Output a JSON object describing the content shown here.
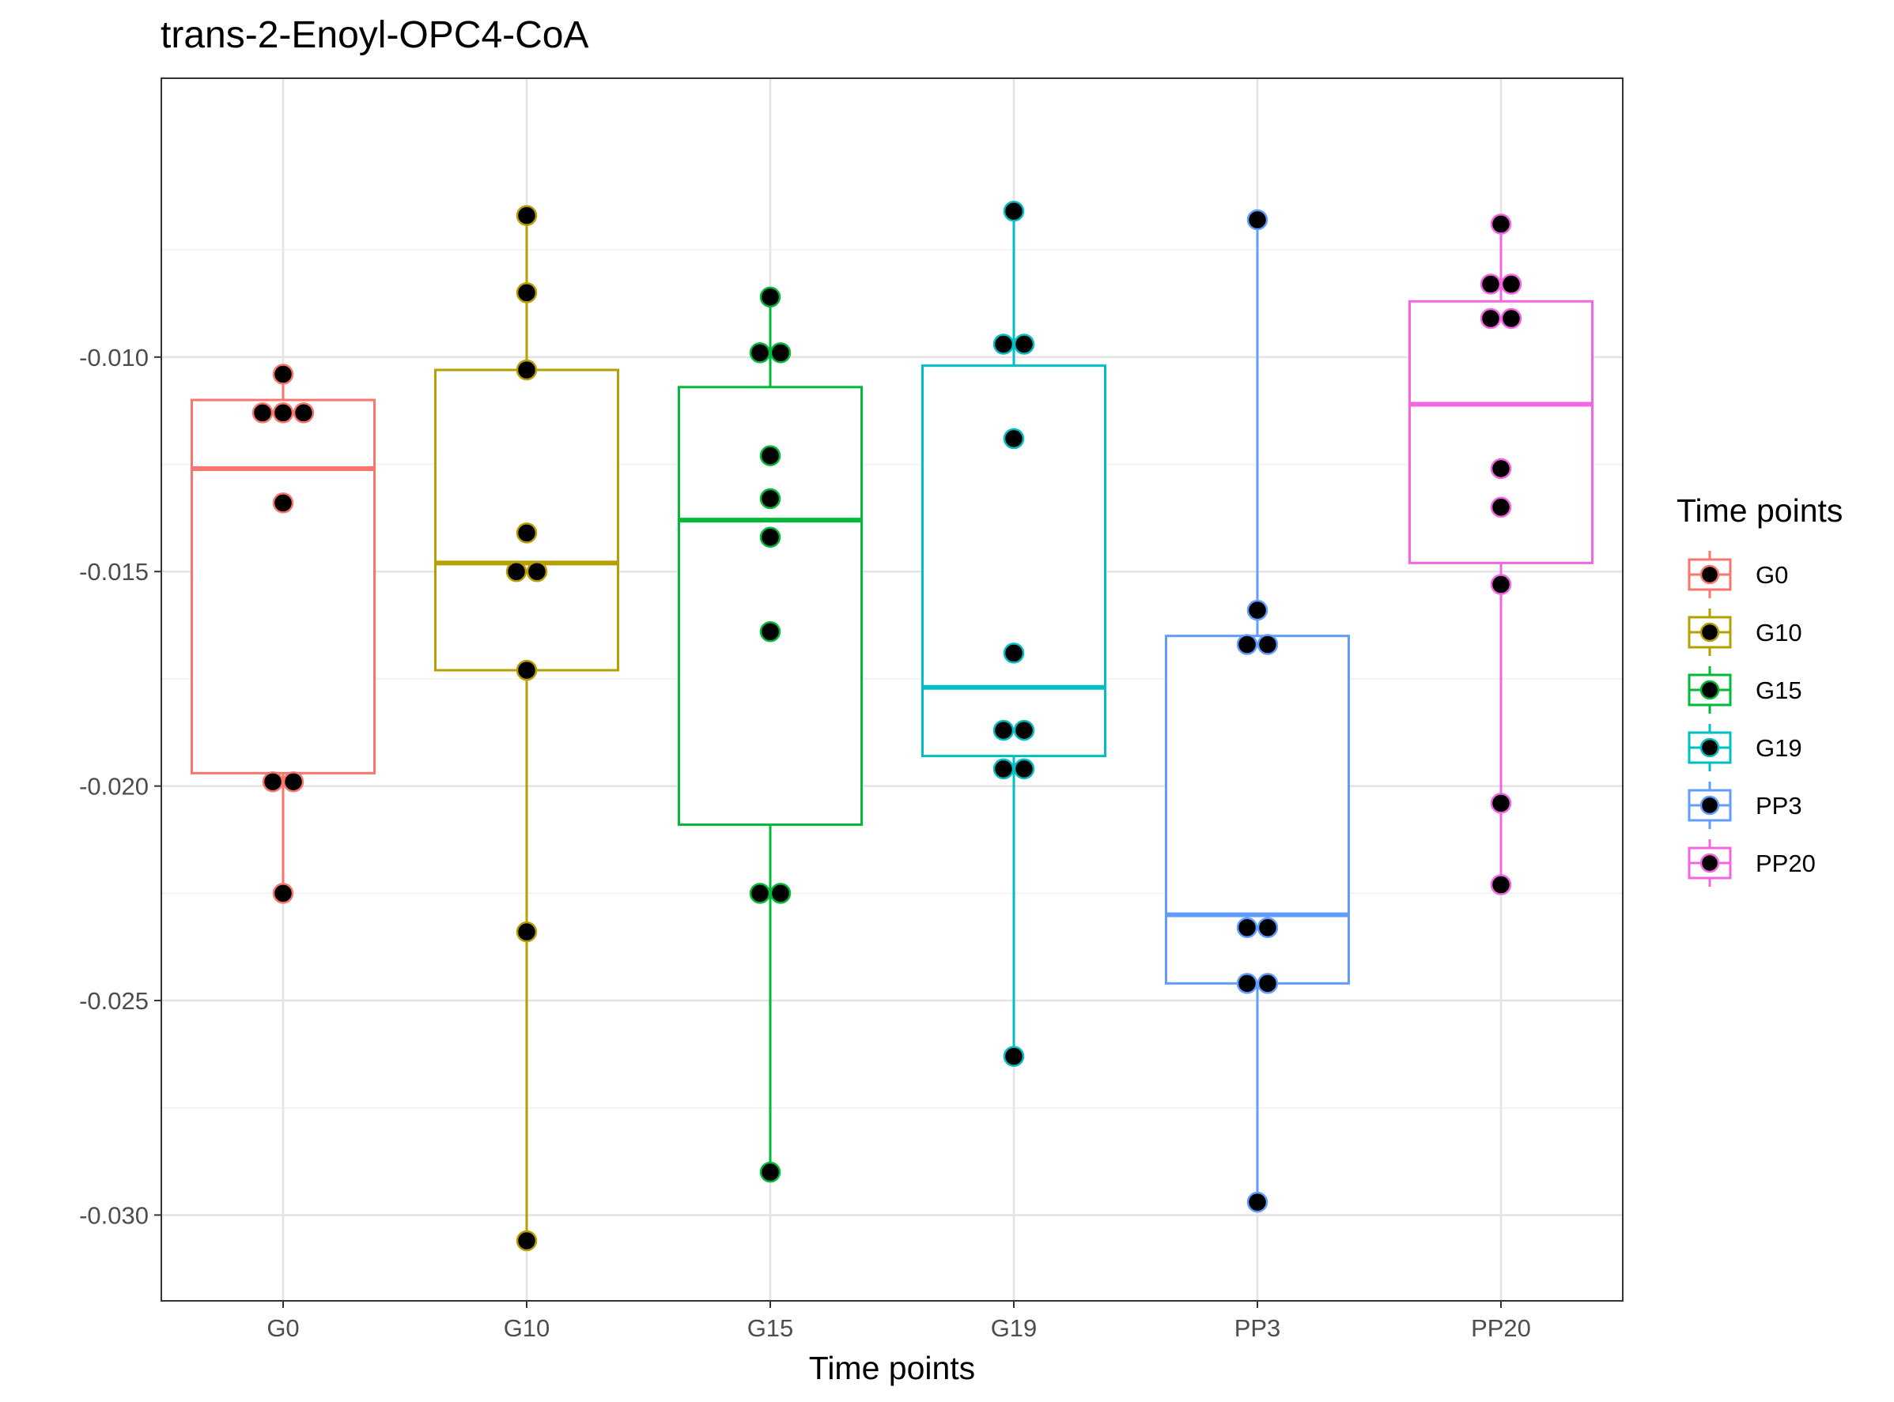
{
  "chart_data": {
    "type": "box",
    "title": "trans-2-Enoyl-OPC4-CoA",
    "xlabel": "Time points",
    "ylabel": "",
    "ylim": [
      -0.032,
      -0.0035
    ],
    "yticks": [
      -0.01,
      -0.015,
      -0.02,
      -0.025,
      -0.03
    ],
    "ytick_labels": [
      "-0.010",
      "-0.015",
      "-0.020",
      "-0.025",
      "-0.030"
    ],
    "grid": true,
    "legend": {
      "title": "Time points",
      "placement": "right"
    },
    "categories": [
      "G0",
      "G10",
      "G15",
      "G19",
      "PP3",
      "PP20"
    ],
    "colors": [
      "#F8766D",
      "#B79F00",
      "#00BA38",
      "#00BFC4",
      "#619CFF",
      "#F564E3"
    ],
    "boxes": [
      {
        "name": "G0",
        "q1": -0.0197,
        "median": -0.0126,
        "q3": -0.011,
        "whisker_low": -0.0225,
        "whisker_high": -0.0104,
        "points": [
          -0.0104,
          -0.0113,
          -0.0113,
          -0.0113,
          -0.0134,
          -0.0199,
          -0.0199,
          -0.0225
        ]
      },
      {
        "name": "G10",
        "q1": -0.0173,
        "median": -0.0148,
        "q3": -0.0103,
        "whisker_low": -0.0306,
        "whisker_high": -0.0067,
        "points": [
          -0.0067,
          -0.0085,
          -0.0103,
          -0.0141,
          -0.015,
          -0.015,
          -0.0173,
          -0.0234,
          -0.0306
        ]
      },
      {
        "name": "G15",
        "q1": -0.0209,
        "median": -0.0138,
        "q3": -0.0107,
        "whisker_low": -0.029,
        "whisker_high": -0.0086,
        "points": [
          -0.0086,
          -0.0099,
          -0.0099,
          -0.0123,
          -0.0133,
          -0.0142,
          -0.0164,
          -0.0225,
          -0.0225,
          -0.029
        ]
      },
      {
        "name": "G19",
        "q1": -0.0193,
        "median": -0.0177,
        "q3": -0.0102,
        "whisker_low": -0.0263,
        "whisker_high": -0.0066,
        "points": [
          -0.0066,
          -0.0097,
          -0.0097,
          -0.0119,
          -0.0169,
          -0.0187,
          -0.0187,
          -0.0196,
          -0.0196,
          -0.0263
        ]
      },
      {
        "name": "PP3",
        "q1": -0.0246,
        "median": -0.023,
        "q3": -0.0165,
        "whisker_low": -0.0297,
        "whisker_high": -0.0068,
        "points": [
          -0.0068,
          -0.0159,
          -0.0167,
          -0.0167,
          -0.0233,
          -0.0233,
          -0.0246,
          -0.0246,
          -0.0297
        ]
      },
      {
        "name": "PP20",
        "q1": -0.0148,
        "median": -0.0111,
        "q3": -0.0087,
        "whisker_low": -0.0223,
        "whisker_high": -0.0069,
        "points": [
          -0.0069,
          -0.0083,
          -0.0083,
          -0.0091,
          -0.0091,
          -0.0126,
          -0.0135,
          -0.0153,
          -0.0204,
          -0.0223
        ]
      }
    ]
  }
}
